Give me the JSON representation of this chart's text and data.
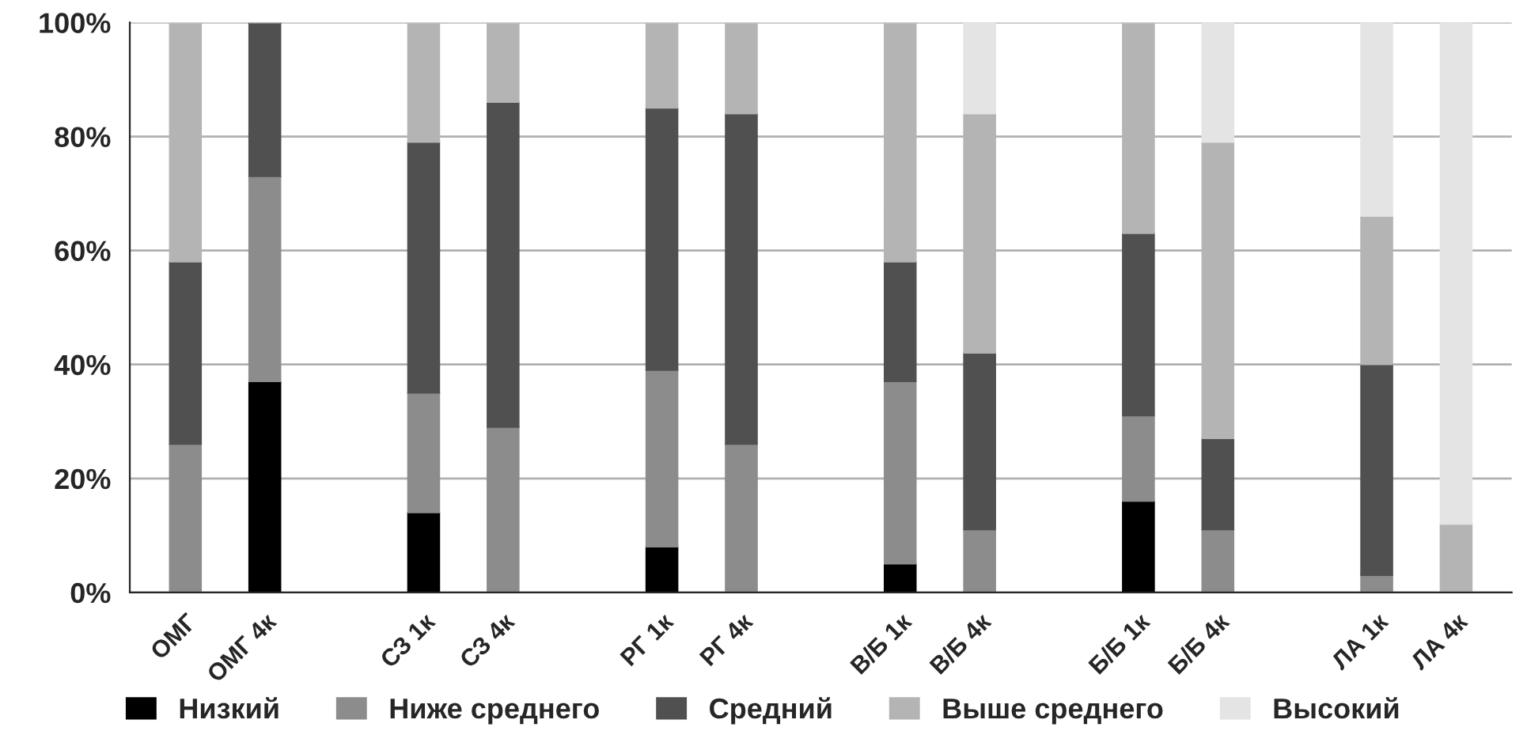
{
  "chart_data": {
    "type": "bar",
    "stacked": true,
    "categories": [
      "ОМГ",
      "ОМГ 4к",
      null,
      "СЗ 1к",
      "СЗ 4к",
      null,
      "РГ 1к",
      "РГ 4к",
      null,
      "В/Б 1к",
      "В/Б 4к",
      null,
      "Б/Б 1к",
      "Б/Б 4к",
      null,
      "ЛА 1к",
      "ЛА 4к"
    ],
    "series": [
      {
        "name": "Низкий",
        "color": "#000000",
        "values": [
          0,
          37,
          0,
          14,
          0,
          0,
          8,
          0,
          0,
          5,
          0,
          0,
          16,
          0,
          0,
          0,
          0
        ]
      },
      {
        "name": "Ниже среднего",
        "color": "#8c8c8c",
        "values": [
          26,
          36,
          0,
          21,
          29,
          0,
          31,
          26,
          0,
          32,
          11,
          0,
          15,
          11,
          0,
          3,
          0
        ]
      },
      {
        "name": "Средний",
        "color": "#505050",
        "values": [
          32,
          27,
          0,
          44,
          57,
          0,
          46,
          58,
          0,
          21,
          31,
          0,
          32,
          16,
          0,
          37,
          0
        ]
      },
      {
        "name": "Выше среднего",
        "color": "#b4b4b4",
        "values": [
          42,
          0,
          0,
          21,
          14,
          0,
          15,
          16,
          0,
          42,
          42,
          0,
          37,
          52,
          0,
          26,
          12
        ]
      },
      {
        "name": "Высокий",
        "color": "#e4e4e4",
        "values": [
          0,
          0,
          0,
          0,
          0,
          0,
          0,
          0,
          0,
          0,
          16,
          0,
          0,
          21,
          0,
          34,
          88
        ]
      }
    ],
    "ylim": [
      0,
      100
    ],
    "yticks": [
      {
        "value": 0,
        "label": "0%"
      },
      {
        "value": 20,
        "label": "20%"
      },
      {
        "value": 40,
        "label": "40%"
      },
      {
        "value": 60,
        "label": "60%"
      },
      {
        "value": 80,
        "label": "80%"
      },
      {
        "value": 100,
        "label": "100%"
      }
    ],
    "grid": "y",
    "legend": "bottom"
  }
}
